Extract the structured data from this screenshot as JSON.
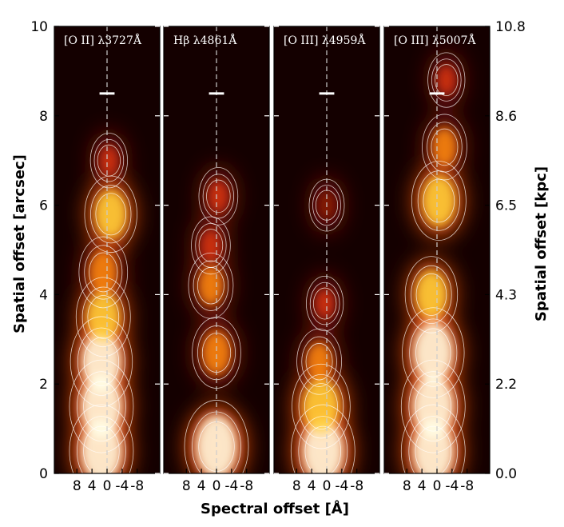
{
  "chart_data": {
    "type": "heatmap",
    "ylabel": "Spatial offset [arcsec]",
    "ylabel_right": "Spatial offset [kpc]",
    "xlabel": "Spectral offset  [Å]",
    "yticks_left": [
      "0",
      "2",
      "4",
      "6",
      "8",
      "10"
    ],
    "yticks_right": [
      "0.0",
      "2.2",
      "4.3",
      "6.5",
      "8.6",
      "10.8"
    ],
    "ylim": [
      0,
      10
    ],
    "ylim_right": [
      0,
      10.8
    ],
    "xticks": [
      "8",
      "4",
      "0",
      "-4",
      "-8"
    ],
    "xtick_values": [
      8,
      4,
      0,
      -4,
      -8
    ],
    "xlim": [
      14,
      -14
    ],
    "colormap": "black-red-yellow-white (hot)",
    "contour_color": "#ffffff",
    "reference_line": {
      "x": 0,
      "style": "dashed",
      "color": "#cccccc"
    },
    "panels": [
      {
        "title": "[O II] λ3727Å",
        "scale_bar": {
          "y": 8.5,
          "x_range": [
            2,
            -2
          ]
        },
        "emission": [
          {
            "y": 0.5,
            "x": 1.5,
            "level": 1.0
          },
          {
            "y": 1.5,
            "x": 1.5,
            "level": 1.0
          },
          {
            "y": 2.5,
            "x": 1.5,
            "level": 0.95
          },
          {
            "y": 3.5,
            "x": 1.0,
            "level": 0.75
          },
          {
            "y": 4.5,
            "x": 1.0,
            "level": 0.6
          },
          {
            "y": 5.8,
            "x": -1.0,
            "level": 0.7
          },
          {
            "y": 7.0,
            "x": -0.5,
            "level": 0.3
          }
        ]
      },
      {
        "title": "Hβ λ4861Å",
        "scale_bar": {
          "y": 8.5,
          "x_range": [
            2,
            -2
          ]
        },
        "emission": [
          {
            "y": 0.6,
            "x": 0,
            "level": 1.0
          },
          {
            "y": 2.7,
            "x": 0,
            "level": 0.6
          },
          {
            "y": 4.2,
            "x": 1.5,
            "level": 0.5
          },
          {
            "y": 5.1,
            "x": 1.5,
            "level": 0.35
          },
          {
            "y": 6.2,
            "x": -0.5,
            "level": 0.35
          }
        ]
      },
      {
        "title": "[O III] λ4959Å",
        "scale_bar": {
          "y": 8.5,
          "x_range": [
            2,
            -2
          ]
        },
        "emission": [
          {
            "y": 0.5,
            "x": 1.0,
            "level": 1.0
          },
          {
            "y": 1.5,
            "x": 1.5,
            "level": 0.85
          },
          {
            "y": 2.5,
            "x": 2.0,
            "level": 0.5
          },
          {
            "y": 3.8,
            "x": 0.5,
            "level": 0.3
          },
          {
            "y": 6.0,
            "x": 0,
            "level": 0.25
          }
        ]
      },
      {
        "title": "[O III] λ5007Å",
        "scale_bar": {
          "y": 8.5,
          "x_range": [
            2,
            -2
          ]
        },
        "emission": [
          {
            "y": 0.5,
            "x": 1.0,
            "level": 1.0
          },
          {
            "y": 1.5,
            "x": 1.0,
            "level": 1.0
          },
          {
            "y": 2.7,
            "x": 1.0,
            "level": 0.95
          },
          {
            "y": 4.0,
            "x": 1.5,
            "level": 0.7
          },
          {
            "y": 6.1,
            "x": -0.5,
            "level": 0.75
          },
          {
            "y": 7.3,
            "x": -2.0,
            "level": 0.5
          },
          {
            "y": 8.8,
            "x": -2.5,
            "level": 0.3
          }
        ]
      }
    ]
  }
}
